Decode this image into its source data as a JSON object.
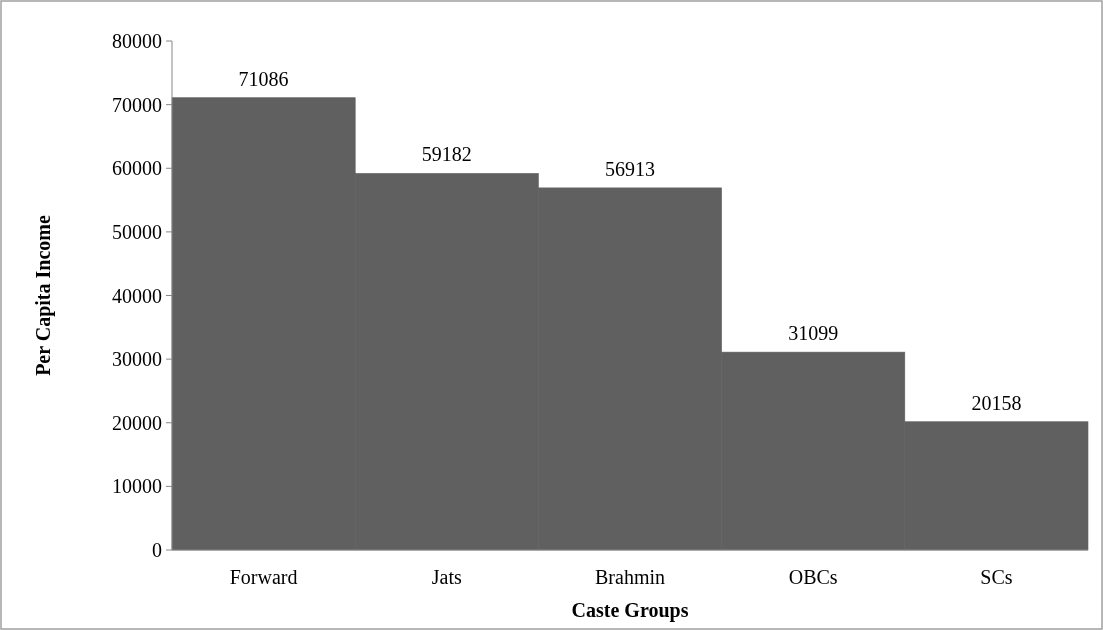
{
  "chart_data": {
    "type": "bar",
    "xlabel": "Caste Groups",
    "ylabel": "Per Capita Income",
    "categories": [
      "Forward",
      "Jats",
      "Brahmin",
      "OBCs",
      "SCs"
    ],
    "values": [
      71086,
      59182,
      56913,
      31099,
      20158
    ],
    "color": "#606060",
    "ylim": [
      0,
      80000
    ],
    "yticks": [
      0,
      10000,
      20000,
      30000,
      40000,
      50000,
      60000,
      70000,
      80000
    ],
    "data_labels": true,
    "grid": false
  }
}
